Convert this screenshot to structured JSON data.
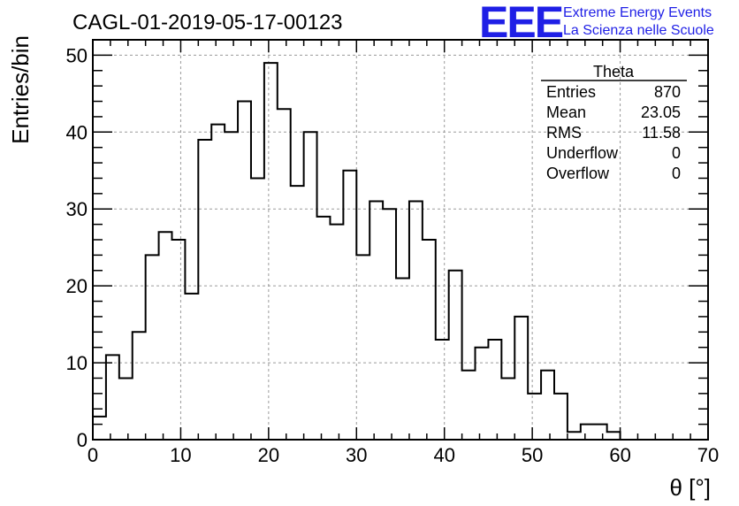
{
  "chart_data": {
    "type": "histogram",
    "title": "CAGL-01-2019-05-17-00123",
    "xlabel": "θ [°]",
    "ylabel": "Entries/bin",
    "xlim": [
      0,
      70
    ],
    "ylim": [
      0,
      52
    ],
    "x_ticks": [
      0,
      10,
      20,
      30,
      40,
      50,
      60,
      70
    ],
    "y_ticks": [
      0,
      10,
      20,
      30,
      40,
      50
    ],
    "grid": true,
    "bin_width": 1.5,
    "bin_start": 0,
    "values": [
      3,
      11,
      8,
      14,
      24,
      27,
      26,
      19,
      39,
      41,
      40,
      44,
      34,
      49,
      43,
      33,
      40,
      29,
      28,
      35,
      24,
      31,
      30,
      21,
      31,
      26,
      13,
      22,
      9,
      12,
      13,
      8,
      16,
      6,
      9,
      6,
      1,
      2,
      2,
      1
    ]
  },
  "stats_box": {
    "name": "Theta",
    "rows": [
      {
        "label": "Entries",
        "value": "870"
      },
      {
        "label": "Mean",
        "value": "23.05"
      },
      {
        "label": "RMS",
        "value": "11.58"
      },
      {
        "label": "Underflow",
        "value": "0"
      },
      {
        "label": "Overflow",
        "value": "0"
      }
    ]
  },
  "logo": {
    "mark": "EEE",
    "line1": "Extreme Energy Events",
    "line2": "La Scienza nelle Scuole",
    "color": "#1f1fe6"
  }
}
